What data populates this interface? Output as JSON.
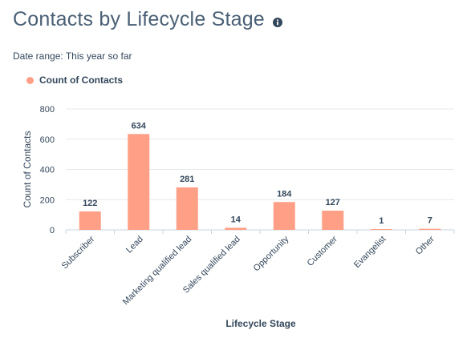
{
  "header": {
    "title": "Contacts by Lifecycle Stage",
    "info_icon": "info-icon"
  },
  "filters": {
    "date_range": "Date range:  This year so far"
  },
  "colors": {
    "bar": "#ff9f86",
    "grid": "#e5e8eb",
    "text": "#33475b"
  },
  "chart_data": {
    "type": "bar",
    "xlabel": "Lifecycle Stage",
    "ylabel": "Count of Contacts",
    "ylim": [
      0,
      800
    ],
    "yticks": [
      0,
      200,
      400,
      600,
      800
    ],
    "grid": true,
    "legend_position": "top-left",
    "categories": [
      "Subscriber",
      "Lead",
      "Marketing qualified lead",
      "Sales qualified lead",
      "Opportunity",
      "Customer",
      "Evangelist",
      "Other"
    ],
    "series": [
      {
        "name": "Count of Contacts",
        "values": [
          122,
          634,
          281,
          14,
          184,
          127,
          1,
          7
        ]
      }
    ]
  }
}
